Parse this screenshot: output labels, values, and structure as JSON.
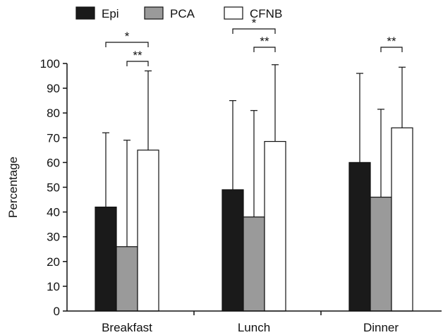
{
  "chart_data": {
    "type": "bar",
    "title": "",
    "xlabel": "",
    "ylabel": "Percentage",
    "ylim": [
      0,
      100
    ],
    "yticks": [
      0,
      10,
      20,
      30,
      40,
      50,
      60,
      70,
      80,
      90,
      100
    ],
    "categories": [
      "Breakfast",
      "Lunch",
      "Dinner"
    ],
    "legend_position": "top-left",
    "grid": false,
    "series": [
      {
        "name": "Epi",
        "color": "#1a1a1a",
        "values": [
          42,
          49,
          60
        ],
        "error": [
          30,
          36,
          36
        ]
      },
      {
        "name": "PCA",
        "color": "#9a9a9a",
        "values": [
          26,
          38,
          46
        ],
        "error": [
          43,
          43,
          35.5
        ]
      },
      {
        "name": "CFNB",
        "color": "#ffffff",
        "values": [
          65,
          68.5,
          74
        ],
        "error": [
          32,
          31,
          24.5
        ]
      }
    ],
    "significance": [
      {
        "category": "Breakfast",
        "from": "Epi",
        "to": "CFNB",
        "label": "*"
      },
      {
        "category": "Breakfast",
        "from": "PCA",
        "to": "CFNB",
        "label": "**"
      },
      {
        "category": "Lunch",
        "from": "Epi",
        "to": "CFNB",
        "label": "*"
      },
      {
        "category": "Lunch",
        "from": "PCA",
        "to": "CFNB",
        "label": "**"
      },
      {
        "category": "Dinner",
        "from": "PCA",
        "to": "CFNB",
        "label": "**"
      }
    ]
  }
}
